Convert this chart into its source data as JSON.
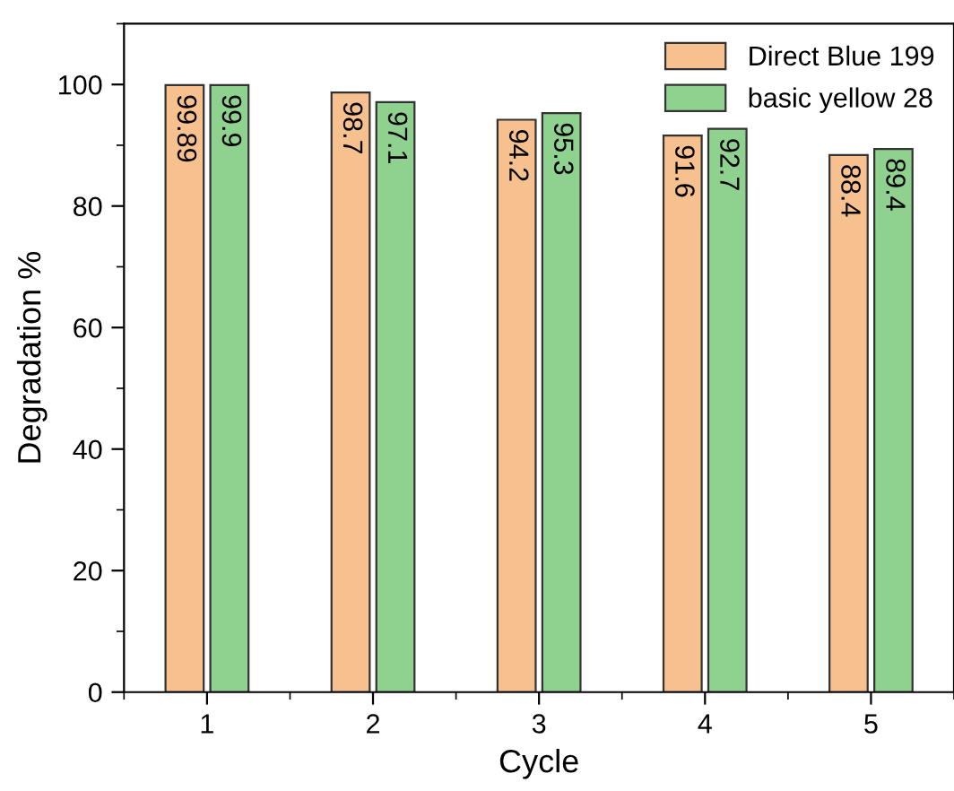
{
  "chart_data": {
    "type": "bar",
    "xlabel": "Cycle",
    "ylabel": "Degradation %",
    "categories": [
      "1",
      "2",
      "3",
      "4",
      "5"
    ],
    "series": [
      {
        "name": "Direct Blue 199",
        "color": "#f7c08f",
        "values": [
          99.89,
          98.7,
          94.2,
          91.6,
          88.4
        ]
      },
      {
        "name": "basic yellow 28",
        "color": "#8fd18f",
        "values": [
          99.9,
          97.1,
          95.3,
          92.7,
          89.4
        ]
      }
    ],
    "ylim": [
      0,
      110
    ],
    "yticks": [
      0,
      20,
      40,
      60,
      80,
      100
    ],
    "data_labels": true,
    "legend": "top right",
    "grid": false
  }
}
